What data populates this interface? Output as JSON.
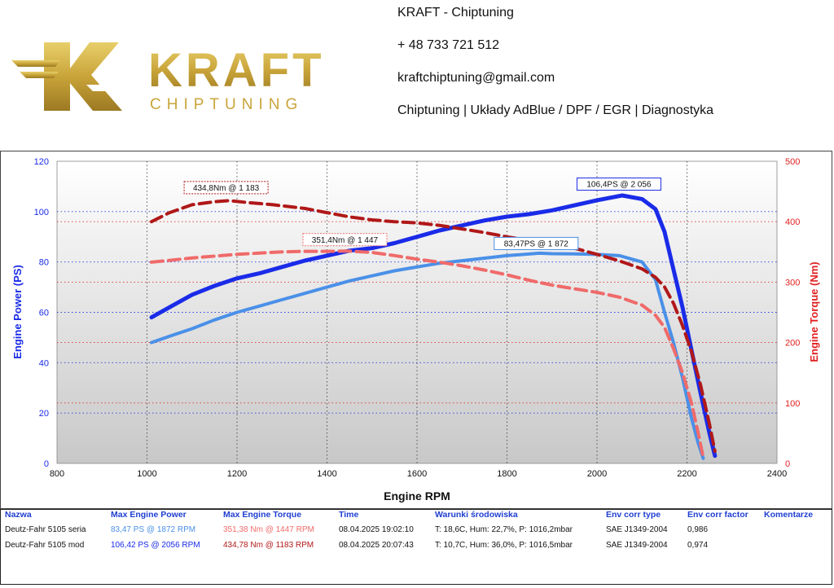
{
  "header": {
    "logo": {
      "wordmark": "KRAFT",
      "subtitle": "CHIPTUNING"
    },
    "company": "KRAFT - Chiptuning",
    "phone": "+ 48 733 721 512",
    "email": "kraftchiptuning@gmail.com",
    "services": "Chiptuning | Układy AdBlue / DPF / EGR | Diagnostyka"
  },
  "colors": {
    "power_mod": "#1a2be8",
    "power_stock": "#4a90e8",
    "torque_mod": "#b01818",
    "torque_stock": "#f06a6a",
    "plot_bg_top": "#ffffff",
    "plot_bg_bottom": "#c8c8c8"
  },
  "chart_data": {
    "type": "line",
    "xlabel": "Engine RPM",
    "ylabel_left": "Engine Power (PS)",
    "ylabel_right": "Engine Torque (Nm)",
    "xlim": [
      800,
      2400
    ],
    "ylim_left": [
      0,
      120
    ],
    "ylim_right": [
      0,
      500
    ],
    "x_ticks": [
      "800",
      "1000",
      "1200",
      "1400",
      "1600",
      "1800",
      "2000",
      "2200",
      "2400"
    ],
    "y_ticks_left": [
      "0",
      "20",
      "40",
      "60",
      "80",
      "100",
      "120"
    ],
    "y_ticks_right": [
      "0",
      "100",
      "200",
      "300",
      "400",
      "500"
    ],
    "grid": true,
    "series": [
      {
        "axis": "left",
        "style": "solid",
        "color_key": "power_mod",
        "x": [
          1010,
          1050,
          1100,
          1150,
          1200,
          1250,
          1300,
          1350,
          1400,
          1450,
          1500,
          1550,
          1600,
          1650,
          1700,
          1750,
          1800,
          1850,
          1900,
          1950,
          2000,
          2056,
          2100,
          2130,
          2150,
          2170,
          2190,
          2210,
          2230,
          2250,
          2262
        ],
        "y": [
          58,
          62,
          67,
          70.5,
          73.5,
          75.5,
          78,
          80.5,
          82.5,
          84.5,
          85.5,
          87.5,
          90,
          92.5,
          94.5,
          96.5,
          98,
          99,
          100.5,
          102.5,
          104.5,
          106.4,
          105,
          101,
          92,
          77,
          62,
          45,
          28,
          12,
          3
        ]
      },
      {
        "axis": "left",
        "style": "solid",
        "color_key": "power_stock",
        "x": [
          1010,
          1050,
          1100,
          1150,
          1200,
          1250,
          1300,
          1350,
          1400,
          1450,
          1500,
          1550,
          1600,
          1650,
          1700,
          1750,
          1800,
          1872,
          1900,
          1950,
          2000,
          2050,
          2100,
          2130,
          2150,
          2170,
          2190,
          2210,
          2225,
          2236
        ],
        "y": [
          48,
          50.5,
          53.5,
          57,
          60,
          62.5,
          65,
          67.5,
          70,
          72.5,
          74.5,
          76.5,
          78,
          79.5,
          80.5,
          81.5,
          82.5,
          83.47,
          83.3,
          83.2,
          83,
          82.5,
          80,
          73,
          60,
          48,
          34,
          18,
          8,
          2
        ]
      },
      {
        "axis": "right",
        "style": "dashed",
        "color_key": "torque_mod",
        "x": [
          1010,
          1050,
          1100,
          1150,
          1183,
          1220,
          1280,
          1350,
          1400,
          1450,
          1500,
          1550,
          1600,
          1650,
          1700,
          1750,
          1800,
          1850,
          1900,
          1950,
          2000,
          2050,
          2100,
          2130,
          2150,
          2170,
          2190,
          2210,
          2230,
          2250,
          2262
        ],
        "y": [
          400,
          415,
          428,
          433,
          434.8,
          432,
          428,
          422,
          415,
          408,
          403,
          400,
          398,
          394,
          388,
          382,
          375,
          369,
          364,
          356,
          346,
          335,
          322,
          308,
          292,
          265,
          228,
          185,
          130,
          65,
          20
        ]
      },
      {
        "axis": "right",
        "style": "dashed",
        "color_key": "torque_stock",
        "x": [
          1010,
          1050,
          1100,
          1150,
          1200,
          1250,
          1300,
          1350,
          1400,
          1447,
          1500,
          1550,
          1600,
          1650,
          1700,
          1750,
          1800,
          1850,
          1900,
          1950,
          2000,
          2050,
          2100,
          2130,
          2150,
          2170,
          2190,
          2210,
          2225,
          2236
        ],
        "y": [
          333,
          336,
          340,
          343,
          346,
          348,
          350,
          351,
          351,
          351.4,
          349,
          344,
          338,
          333,
          327,
          320,
          312,
          303,
          295,
          289,
          283,
          275,
          262,
          245,
          225,
          190,
          150,
          100,
          50,
          10
        ]
      }
    ],
    "annotations": [
      {
        "text": "106,4PS @ 2 056",
        "x": 2056,
        "y": 106.4,
        "axis": "left",
        "color_key": "power_mod"
      },
      {
        "text": "83,47PS @ 1 872",
        "x": 1872,
        "y": 83.47,
        "axis": "left",
        "color_key": "power_stock"
      },
      {
        "text": "434,8Nm @ 1 183",
        "x": 1183,
        "y": 434.8,
        "axis": "right",
        "color_key": "torque_mod"
      },
      {
        "text": "351,4Nm @ 1 447",
        "x": 1447,
        "y": 351.4,
        "axis": "right",
        "color_key": "torque_stock"
      }
    ]
  },
  "table": {
    "headers": [
      "Nazwa",
      "Max Engine Power",
      "Max Engine Torque",
      "Time",
      "Warunki środowiska",
      "Env corr type",
      "Env corr factor",
      "Komentarze"
    ],
    "rows": [
      {
        "name": "Deutz-Fahr 5105 seria",
        "power": "83,47 PS @ 1872 RPM",
        "torque": "351,38 Nm @ 1447 RPM",
        "time": "08.04.2025 19:02:10",
        "env": "T: 18,6C, Hum: 22,7%, P: 1016,2mbar",
        "corr_type": "SAE J1349-2004",
        "corr_factor": "0,986",
        "comment": ""
      },
      {
        "name": "Deutz-Fahr 5105 mod",
        "power": "106,42 PS @ 2056 RPM",
        "torque": "434,78 Nm @ 1183 RPM",
        "time": "08.04.2025 20:07:43",
        "env": "T: 10,7C, Hum: 36,0%, P: 1016,5mbar",
        "corr_type": "SAE J1349-2004",
        "corr_factor": "0,974",
        "comment": ""
      }
    ]
  }
}
